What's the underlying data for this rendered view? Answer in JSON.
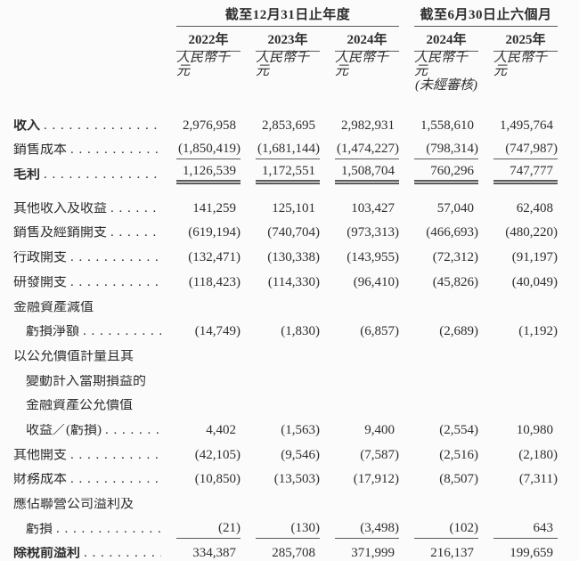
{
  "colors": {
    "background": "#fbfbfb",
    "text": "#2e2e2e",
    "rule": "#5a5a5a"
  },
  "header": {
    "group1_title": "截至12月31日止年度",
    "group2_title": "截至6月30日止六個月",
    "columns": [
      {
        "year": "2022年",
        "unit": "人民幣千元",
        "note": ""
      },
      {
        "year": "2023年",
        "unit": "人民幣千元",
        "note": ""
      },
      {
        "year": "2024年",
        "unit": "人民幣千元",
        "note": ""
      },
      {
        "year": "2024年",
        "unit": "人民幣千元",
        "note": "(未經審核)"
      },
      {
        "year": "2025年",
        "unit": "人民幣千元",
        "note": ""
      }
    ]
  },
  "rows": [
    {
      "label": "收入",
      "bold": true,
      "leader": true,
      "indent": false,
      "underline": "none",
      "gap_after": false,
      "values": [
        "2,976,958",
        "2,853,695",
        "2,982,931",
        "1,558,610",
        "1,495,764"
      ]
    },
    {
      "label": "銷售成本",
      "bold": false,
      "leader": true,
      "indent": false,
      "underline": "single",
      "gap_after": false,
      "values": [
        "(1,850,419)",
        "(1,681,144)",
        "(1,474,227)",
        "(798,314)",
        "(747,987)"
      ]
    },
    {
      "label": "毛利",
      "bold": true,
      "leader": true,
      "indent": false,
      "underline": "double",
      "gap_after": true,
      "values": [
        "1,126,539",
        "1,172,551",
        "1,508,704",
        "760,296",
        "747,777"
      ]
    },
    {
      "label": "其他收入及收益",
      "bold": false,
      "leader": true,
      "indent": false,
      "underline": "none",
      "gap_after": false,
      "values": [
        "141,259",
        "125,101",
        "103,427",
        "57,040",
        "62,408"
      ]
    },
    {
      "label": "銷售及經銷開支",
      "bold": false,
      "leader": true,
      "indent": false,
      "underline": "none",
      "gap_after": false,
      "values": [
        "(619,194)",
        "(740,704)",
        "(973,313)",
        "(466,693)",
        "(480,220)"
      ]
    },
    {
      "label": "行政開支",
      "bold": false,
      "leader": true,
      "indent": false,
      "underline": "none",
      "gap_after": false,
      "values": [
        "(132,471)",
        "(130,338)",
        "(143,955)",
        "(72,312)",
        "(91,197)"
      ]
    },
    {
      "label": "研發開支",
      "bold": false,
      "leader": true,
      "indent": false,
      "underline": "none",
      "gap_after": false,
      "values": [
        "(118,423)",
        "(114,330)",
        "(96,410)",
        "(45,826)",
        "(40,049)"
      ]
    },
    {
      "label": "金融資產減值",
      "bold": false,
      "leader": false,
      "indent": false,
      "underline": "none",
      "gap_after": false,
      "values": []
    },
    {
      "label": "虧損淨額",
      "bold": false,
      "leader": true,
      "indent": true,
      "underline": "none",
      "gap_after": false,
      "values": [
        "(14,749)",
        "(1,830)",
        "(6,857)",
        "(2,689)",
        "(1,192)"
      ]
    },
    {
      "label": "以公允價值計量且其",
      "bold": false,
      "leader": false,
      "indent": false,
      "underline": "none",
      "gap_after": false,
      "values": []
    },
    {
      "label": "變動計入當期損益的",
      "bold": false,
      "leader": false,
      "indent": true,
      "underline": "none",
      "gap_after": false,
      "values": []
    },
    {
      "label": "金融資產公允價值",
      "bold": false,
      "leader": false,
      "indent": true,
      "underline": "none",
      "gap_after": false,
      "values": []
    },
    {
      "label": "收益／(虧損)",
      "bold": false,
      "leader": true,
      "indent": true,
      "underline": "none",
      "gap_after": false,
      "values": [
        "4,402",
        "(1,563)",
        "9,400",
        "(2,554)",
        "10,980"
      ]
    },
    {
      "label": "其他開支",
      "bold": false,
      "leader": true,
      "indent": false,
      "underline": "none",
      "gap_after": false,
      "values": [
        "(42,105)",
        "(9,546)",
        "(7,587)",
        "(2,516)",
        "(2,180)"
      ]
    },
    {
      "label": "財務成本",
      "bold": false,
      "leader": true,
      "indent": false,
      "underline": "none",
      "gap_after": false,
      "values": [
        "(10,850)",
        "(13,503)",
        "(17,912)",
        "(8,507)",
        "(7,311)"
      ]
    },
    {
      "label": "應佔聯營公司溢利及",
      "bold": false,
      "leader": false,
      "indent": false,
      "underline": "none",
      "gap_after": false,
      "values": []
    },
    {
      "label": "虧損",
      "bold": false,
      "leader": true,
      "indent": true,
      "underline": "single",
      "gap_after": false,
      "values": [
        "(21)",
        "(130)",
        "(3,498)",
        "(102)",
        "643"
      ]
    },
    {
      "label": "除稅前溢利",
      "bold": true,
      "leader": true,
      "indent": false,
      "underline": "none",
      "gap_after": false,
      "values": [
        "334,387",
        "285,708",
        "371,999",
        "216,137",
        "199,659"
      ]
    }
  ]
}
